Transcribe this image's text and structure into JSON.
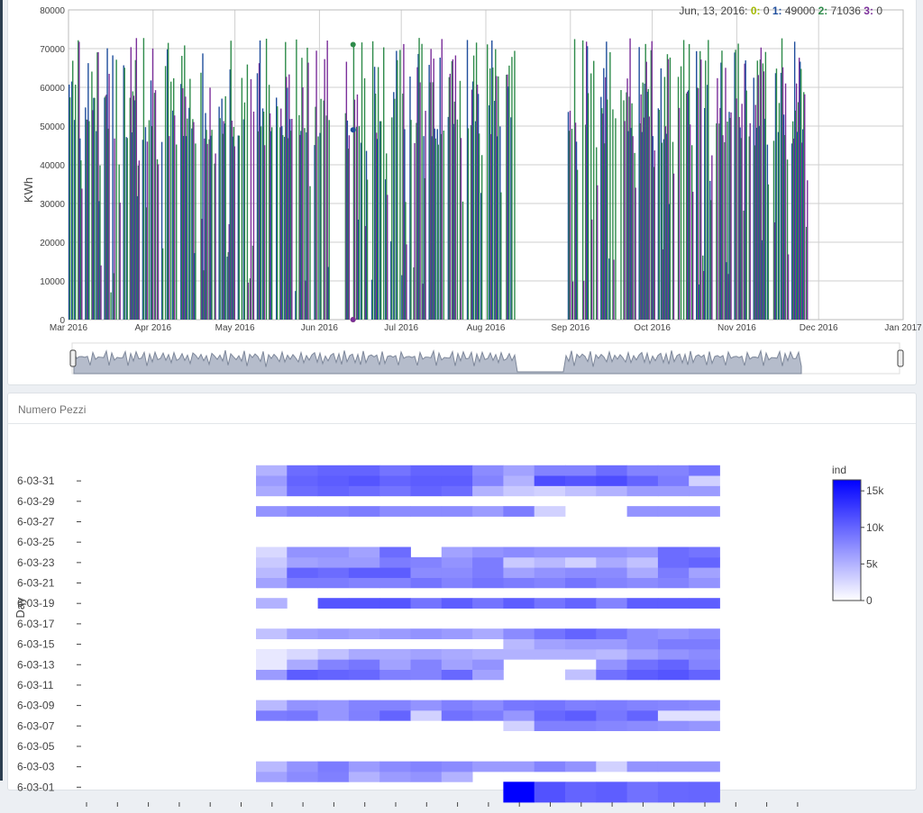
{
  "energy_panel": {
    "chart_data": {
      "type": "bar",
      "ylabel": "KWh",
      "ylim": [
        0,
        80000
      ],
      "y_ticks": [
        0,
        10000,
        20000,
        30000,
        40000,
        50000,
        60000,
        70000,
        80000
      ],
      "x_ticks": [
        "Mar 2016",
        "Apr 2016",
        "May 2016",
        "Jun 2016",
        "Jul 2016",
        "Aug 2016",
        "Sep 2016",
        "Oct 2016",
        "Nov 2016",
        "Dec 2016",
        "Jan 2017"
      ],
      "series": [
        {
          "name": "0",
          "color": "#a3b900"
        },
        {
          "name": "1",
          "color": "#1f4e9c"
        },
        {
          "name": "2",
          "color": "#2e8b4a"
        },
        {
          "name": "3",
          "color": "#7b2f9a"
        }
      ],
      "hover": {
        "date": "Jun, 13, 2016",
        "values": [
          0,
          49000,
          71036,
          0
        ]
      },
      "grid": true,
      "has_range_slider": true
    }
  },
  "pieces_panel": {
    "title": "Numero Pezzi",
    "chart_data": {
      "type": "heatmap",
      "ylabel": "Day",
      "y_ticks": [
        "6-03-31",
        "6-03-29",
        "6-03-27",
        "6-03-25",
        "6-03-23",
        "6-03-21",
        "6-03-19",
        "6-03-17",
        "6-03-15",
        "6-03-13",
        "6-03-11",
        "6-03-09",
        "6-03-07",
        "6-03-05",
        "6-03-03",
        "6-03-01"
      ],
      "colorbar": {
        "title": "ind",
        "ticks": [
          "15k",
          "10k",
          "5k",
          "0"
        ],
        "range": [
          0,
          16500
        ]
      },
      "colors": {
        "low": "#ffffff",
        "high": "#0000ff"
      },
      "cells": [
        [
          0,
          0,
          0,
          0,
          0,
          0,
          0,
          0,
          17000,
          11200,
          10000,
          10400,
          9200,
          9800,
          9900
        ],
        [
          0,
          0,
          0,
          0,
          0,
          0,
          0,
          0,
          17000,
          11200,
          10000,
          10400,
          9200,
          9800,
          9900
        ],
        [
          6000,
          7500,
          8200,
          5000,
          6500,
          7000,
          5000,
          0,
          0,
          0,
          0,
          0,
          0,
          0,
          0
        ],
        [
          4500,
          7000,
          8500,
          6500,
          7500,
          8000,
          7500,
          6500,
          6500,
          8000,
          7000,
          3000,
          7000,
          7000,
          7000
        ],
        [
          0,
          0,
          0,
          0,
          0,
          0,
          0,
          0,
          0,
          0,
          0,
          0,
          0,
          0,
          0
        ],
        [
          0,
          0,
          0,
          0,
          0,
          0,
          0,
          0,
          0,
          0,
          0,
          0,
          0,
          0,
          0
        ],
        [
          0,
          0,
          0,
          0,
          0,
          0,
          0,
          0,
          0,
          0,
          0,
          0,
          0,
          0,
          0
        ],
        [
          0,
          0,
          0,
          0,
          0,
          0,
          0,
          0,
          3000,
          8200,
          8200,
          7800,
          7500,
          7200,
          6800
        ],
        [
          8500,
          8800,
          6800,
          8200,
          10000,
          3000,
          9200,
          8500,
          6800,
          9800,
          10500,
          8800,
          10000,
          2000,
          2000
        ],
        [
          4500,
          7000,
          6800,
          8000,
          8000,
          7000,
          8200,
          7500,
          8800,
          9000,
          8300,
          8500,
          8000,
          7800,
          7600
        ],
        [
          0,
          0,
          0,
          0,
          0,
          0,
          0,
          0,
          0,
          0,
          0,
          0,
          0,
          0,
          0
        ],
        [
          0,
          0,
          0,
          0,
          0,
          0,
          0,
          0,
          0,
          0,
          0,
          0,
          0,
          0,
          0
        ],
        [
          6500,
          10500,
          10000,
          9800,
          8200,
          8000,
          9800,
          6000,
          0,
          0,
          4000,
          9200,
          10500,
          11000,
          10000
        ],
        [
          1500,
          5500,
          8000,
          8800,
          6000,
          8000,
          6000,
          7000,
          0,
          0,
          0,
          7000,
          9200,
          10000,
          8000
        ],
        [
          1500,
          2500,
          4000,
          5500,
          5500,
          6000,
          5500,
          5000,
          5000,
          5000,
          5000,
          4500,
          6000,
          7000,
          7500
        ],
        [
          0,
          0,
          0,
          0,
          0,
          0,
          0,
          0,
          4500,
          6000,
          6500,
          6500,
          7500,
          8500,
          8500
        ],
        [
          4000,
          6000,
          6500,
          6000,
          6500,
          7000,
          6500,
          5500,
          7500,
          9000,
          10000,
          9000,
          7500,
          7000,
          7500
        ],
        [
          0,
          0,
          0,
          0,
          0,
          0,
          0,
          0,
          0,
          0,
          0,
          0,
          0,
          0,
          0
        ],
        [
          0,
          0,
          0,
          0,
          0,
          0,
          0,
          0,
          0,
          0,
          0,
          0,
          0,
          0,
          0
        ],
        [
          5000,
          0,
          11000,
          11000,
          11000,
          9000,
          10500,
          9000,
          10500,
          9000,
          10000,
          8000,
          10500,
          10500,
          10500
        ],
        [
          0,
          0,
          0,
          0,
          0,
          0,
          0,
          0,
          0,
          0,
          0,
          0,
          0,
          0,
          0
        ],
        [
          6000,
          8500,
          8500,
          8000,
          8000,
          9000,
          8000,
          9000,
          8500,
          8000,
          9000,
          8000,
          7500,
          8000,
          7000
        ],
        [
          4500,
          10000,
          9500,
          10500,
          10500,
          7500,
          7500,
          8500,
          6000,
          7000,
          7500,
          7500,
          5500,
          8500,
          6000
        ],
        [
          3500,
          6000,
          6500,
          6500,
          8500,
          8000,
          7000,
          8500,
          3500,
          4500,
          3000,
          5500,
          4000,
          9500,
          10000
        ],
        [
          2500,
          7000,
          7000,
          6000,
          9500,
          0,
          6000,
          7000,
          7500,
          7000,
          7000,
          7000,
          6500,
          9500,
          9000
        ],
        [
          0,
          0,
          0,
          0,
          0,
          0,
          0,
          0,
          0,
          0,
          0,
          0,
          0,
          0,
          0
        ],
        [
          0,
          0,
          0,
          0,
          0,
          0,
          0,
          0,
          0,
          0,
          0,
          0,
          0,
          0,
          0
        ],
        [
          0,
          0,
          0,
          0,
          0,
          0,
          0,
          0,
          0,
          0,
          0,
          0,
          0,
          0,
          0
        ],
        [
          7000,
          8000,
          8000,
          8500,
          7500,
          7500,
          7500,
          6500,
          8500,
          3000,
          0,
          0,
          7000,
          7000,
          7000
        ],
        [
          0,
          0,
          0,
          0,
          0,
          0,
          0,
          0,
          0,
          0,
          0,
          0,
          0,
          0,
          0
        ],
        [
          5500,
          9500,
          10000,
          9500,
          9000,
          10000,
          9500,
          5000,
          3500,
          3000,
          4000,
          5000,
          6500,
          6500,
          6500
        ],
        [
          6500,
          10000,
          10500,
          11000,
          10000,
          10500,
          10500,
          8000,
          5000,
          11500,
          11000,
          11500,
          10000,
          8500,
          3000
        ],
        [
          5000,
          9500,
          10000,
          10000,
          9000,
          10000,
          10000,
          7500,
          6000,
          8000,
          8000,
          9500,
          8000,
          8000,
          9000
        ]
      ]
    }
  }
}
